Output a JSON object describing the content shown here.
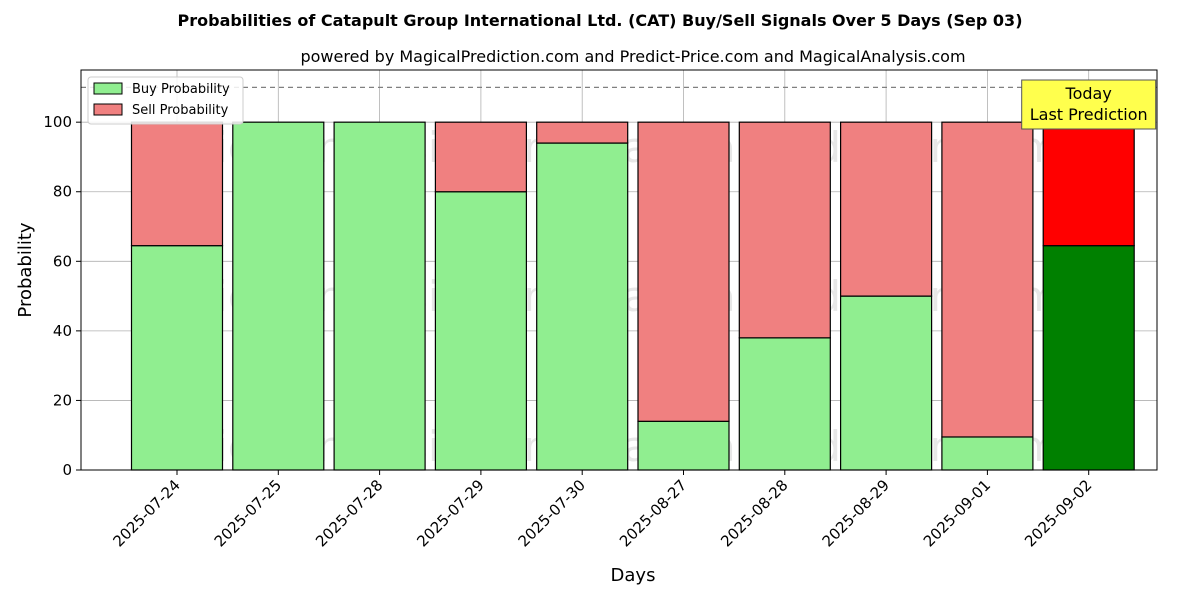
{
  "chart_data": {
    "type": "bar",
    "stacked": true,
    "title": "Probabilities of Catapult Group International Ltd. (CAT) Buy/Sell Signals Over 5 Days (Sep 03)",
    "subtitle": "powered by MagicalPrediction.com and Predict-Price.com and MagicalAnalysis.com",
    "xlabel": "Days",
    "ylabel": "Probability",
    "ylim": [
      0,
      115
    ],
    "yticks": [
      0,
      20,
      40,
      60,
      80,
      100
    ],
    "grid": true,
    "legend_position": "top-left",
    "categories": [
      "2025-07-24",
      "2025-07-25",
      "2025-07-28",
      "2025-07-29",
      "2025-07-30",
      "2025-08-27",
      "2025-08-28",
      "2025-08-29",
      "2025-09-01",
      "2025-09-02"
    ],
    "series": [
      {
        "name": "Buy Probability",
        "color": "#90ee90",
        "values": [
          64.5,
          100,
          100,
          80,
          94,
          14,
          38,
          50,
          9.5,
          64.5
        ]
      },
      {
        "name": "Sell Probability",
        "color": "#f08080",
        "values": [
          35.5,
          0,
          0,
          20,
          6,
          86,
          62,
          50,
          90.5,
          35.5
        ]
      }
    ],
    "highlight": {
      "index": 9,
      "buy_color": "#008000",
      "sell_color": "#ff0000"
    },
    "reference_line": {
      "y": 110,
      "style": "dashed"
    },
    "annotation": {
      "line1": "Today",
      "line2": "Last Prediction",
      "background": "#ffff4d"
    },
    "watermarks": [
      "MagicalAnalysis.com",
      "MagicalPrediction.com"
    ]
  }
}
